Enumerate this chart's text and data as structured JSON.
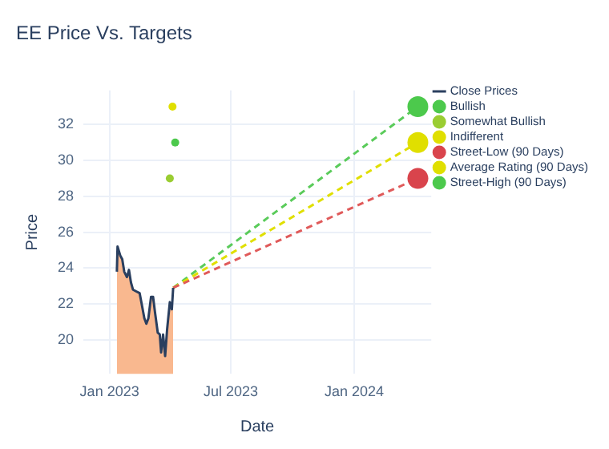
{
  "chart_data": {
    "type": "line",
    "title": "EE Price Vs. Targets",
    "xlabel": "Date",
    "ylabel": "Price",
    "xlim": [
      "2022-11-23",
      "2024-04-25"
    ],
    "xticks": [
      {
        "value": "2023-01-01",
        "label": "Jan 2023"
      },
      {
        "value": "2023-07-01",
        "label": "Jul 2023"
      },
      {
        "value": "2024-01-01",
        "label": "Jan 2024"
      }
    ],
    "ylim": [
      18.1,
      33.9
    ],
    "yticks": [
      20,
      22,
      24,
      26,
      28,
      30,
      32
    ],
    "grid": true,
    "legend": "top right",
    "series": [
      {
        "name": "Close Prices",
        "color": "#2a3f5f",
        "line_style": "solid",
        "x": [
          "2023-01-12",
          "2023-01-13",
          "2023-01-17",
          "2023-01-20",
          "2023-01-23",
          "2023-01-27",
          "2023-01-30",
          "2023-02-02",
          "2023-02-05",
          "2023-02-10",
          "2023-02-15",
          "2023-02-19",
          "2023-02-22",
          "2023-02-25",
          "2023-02-28",
          "2023-03-04",
          "2023-03-07",
          "2023-03-10",
          "2023-03-14",
          "2023-03-17",
          "2023-03-19",
          "2023-03-22",
          "2023-03-25",
          "2023-03-28",
          "2023-04-01",
          "2023-04-04",
          "2023-04-06"
        ],
        "values": [
          23.8,
          25.2,
          24.7,
          24.5,
          23.8,
          23.5,
          23.9,
          23.2,
          22.8,
          22.7,
          22.6,
          21.8,
          21.2,
          20.9,
          21.2,
          22.4,
          22.4,
          21.5,
          20.4,
          20.3,
          19.3,
          20.3,
          19.1,
          20.6,
          22.1,
          21.7,
          22.9
        ]
      },
      {
        "type": "area",
        "color": "#f9b88f",
        "x": [
          "2023-01-12",
          "2023-01-13",
          "2023-01-17",
          "2023-01-20",
          "2023-01-23",
          "2023-01-27",
          "2023-01-30",
          "2023-02-02",
          "2023-02-05",
          "2023-02-10",
          "2023-02-15",
          "2023-02-19",
          "2023-02-22",
          "2023-02-25",
          "2023-02-28",
          "2023-03-04",
          "2023-03-07",
          "2023-03-10",
          "2023-03-14",
          "2023-03-17",
          "2023-03-19",
          "2023-03-22",
          "2023-03-25",
          "2023-03-28",
          "2023-04-01",
          "2023-04-04",
          "2023-04-06"
        ],
        "values": [
          23.8,
          25.2,
          24.7,
          24.5,
          23.8,
          23.5,
          23.9,
          23.2,
          22.8,
          22.7,
          22.6,
          21.8,
          21.2,
          20.9,
          21.2,
          22.4,
          22.4,
          21.5,
          20.4,
          20.3,
          19.3,
          20.3,
          19.1,
          20.6,
          22.1,
          21.7,
          22.9
        ]
      },
      {
        "name": "Bullish",
        "type": "scatter",
        "marker": "circle",
        "color": "#4cc94c",
        "x": [
          "2023-04-09"
        ],
        "values": [
          31
        ]
      },
      {
        "name": "Somewhat Bullish",
        "type": "scatter",
        "marker": "circle",
        "color": "#9acd32",
        "x": [
          "2023-04-01"
        ],
        "values": [
          29
        ]
      },
      {
        "name": "Indifferent",
        "type": "scatter",
        "marker": "circle",
        "color": "#e0df00",
        "x": [
          "2023-04-05"
        ],
        "values": [
          33
        ]
      },
      {
        "name": "Street-Low (90 Days)",
        "type": "bubble",
        "marker": "circle",
        "color": "#d9444c",
        "x": [
          "2024-04-05"
        ],
        "values": [
          29
        ],
        "sizes": [
          1
        ]
      },
      {
        "name": "Average Rating (90 Days)",
        "type": "bubble",
        "marker": "circle",
        "color": "#e0df00",
        "x": [
          "2024-04-05"
        ],
        "values": [
          31
        ],
        "sizes": [
          1
        ]
      },
      {
        "name": "Street-High (90 Days)",
        "type": "bubble",
        "marker": "circle",
        "color": "#4cc94c",
        "x": [
          "2024-04-05"
        ],
        "values": [
          33
        ],
        "sizes": [
          1
        ]
      },
      {
        "type": "line",
        "line_style": "dashed",
        "color": "#e05a5a",
        "x": [
          "2023-04-06",
          "2024-04-05"
        ],
        "values": [
          22.9,
          29
        ]
      },
      {
        "type": "line",
        "line_style": "dashed",
        "color": "#e0df00",
        "x": [
          "2023-04-06",
          "2024-04-05"
        ],
        "values": [
          22.9,
          31
        ]
      },
      {
        "type": "line",
        "line_style": "dashed",
        "color": "#5acb5a",
        "x": [
          "2023-04-06",
          "2024-04-05"
        ],
        "values": [
          22.9,
          33
        ]
      }
    ]
  }
}
